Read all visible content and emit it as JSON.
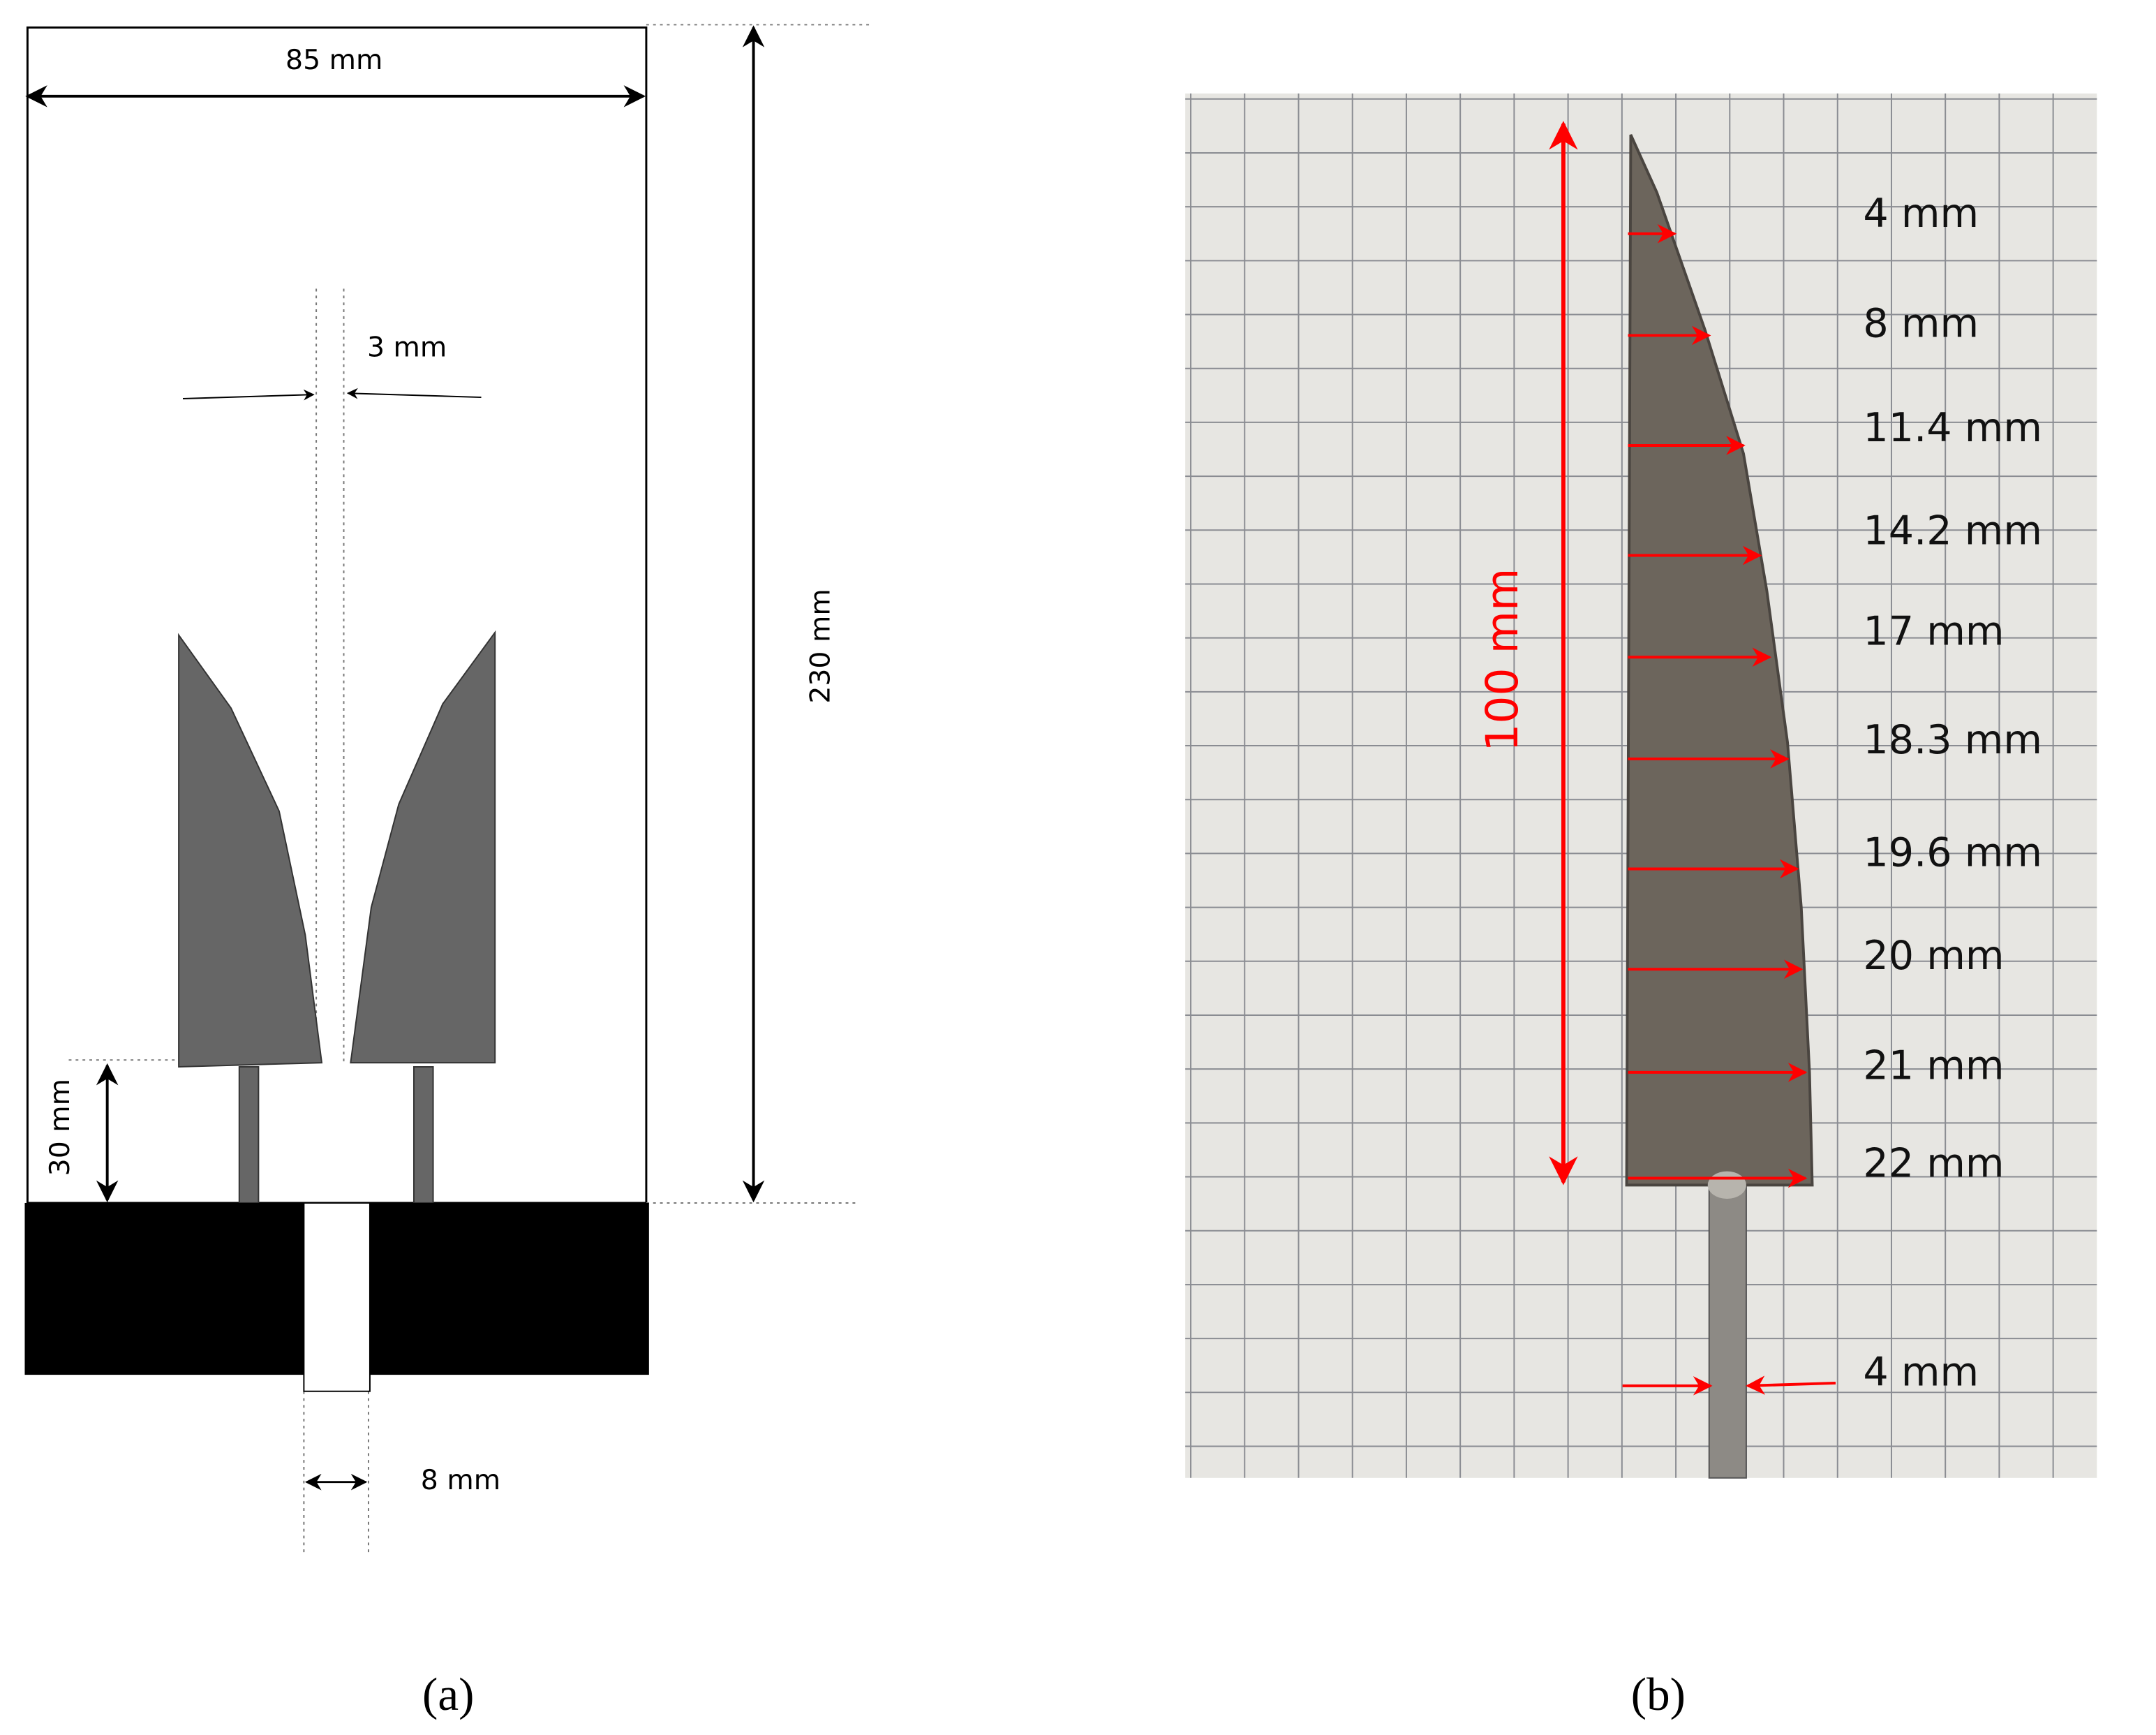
{
  "panel_a": {
    "width_label": "85 mm",
    "height_label": "230 mm",
    "gap_label": "3 mm",
    "feed_height_label": "30 mm",
    "feed_width_label": "8 mm",
    "caption": "(a)"
  },
  "panel_b": {
    "length_label": "100 mm",
    "widths": [
      "4 mm",
      "8 mm",
      "11.4 mm",
      "14.2 mm",
      "17 mm",
      "18.3 mm",
      "19.6 mm",
      "20 mm",
      "21 mm",
      "22 mm"
    ],
    "rod_label": "4 mm",
    "caption": "(b)"
  }
}
